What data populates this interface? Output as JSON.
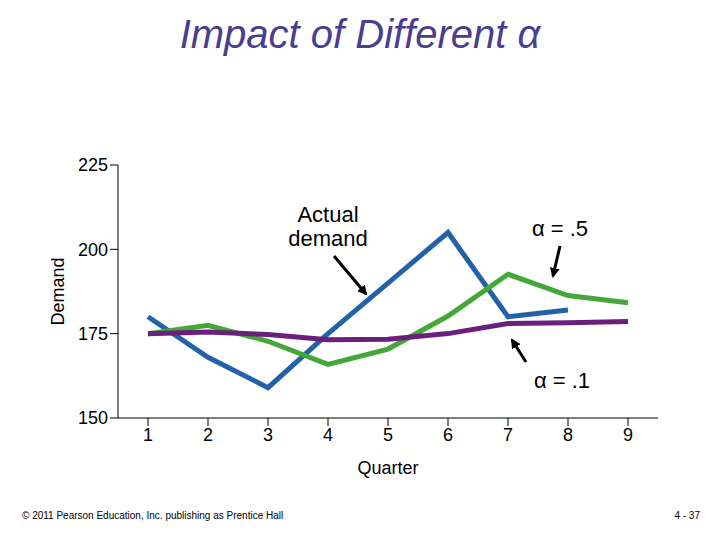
{
  "chart_data": {
    "type": "line",
    "title": "Impact of Different α",
    "x_label": "Quarter",
    "y_label": "Demand",
    "x": [
      1,
      2,
      3,
      4,
      5,
      6,
      7,
      8,
      9
    ],
    "xlim": [
      0.5,
      9.5
    ],
    "xticks": [
      1,
      2,
      3,
      4,
      5,
      6,
      7,
      8,
      9
    ],
    "ylim": [
      150,
      225
    ],
    "yticks": [
      150,
      175,
      200,
      225
    ],
    "grid": false,
    "series": [
      {
        "name": "Actual demand",
        "color": "#2361a8",
        "values": [
          180,
          168,
          159,
          175,
          190,
          205,
          180,
          182,
          null
        ]
      },
      {
        "name": "α = .5",
        "color": "#43a838",
        "values": [
          175,
          177.5,
          172.75,
          165.88,
          170.44,
          180.22,
          192.61,
          186.3,
          184.15
        ]
      },
      {
        "name": "α = .1",
        "color": "#6b1f7c",
        "values": [
          175,
          175.5,
          174.75,
          173.18,
          173.36,
          175.02,
          178.02,
          178.22,
          178.6
        ]
      }
    ],
    "footer": [
      "© 2011 Pearson Education, Inc. publishing as Prentice Hall",
      "4 - 37"
    ]
  }
}
